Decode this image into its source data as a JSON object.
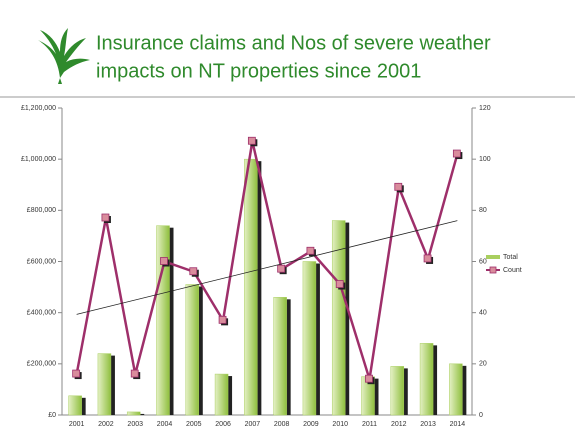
{
  "chart_data": {
    "type": "bar_line",
    "title_lines": [
      "Insurance claims and Nos of severe weather",
      "impacts on NT properties since 2001"
    ],
    "categories": [
      "2001",
      "2002",
      "2003",
      "2004",
      "2005",
      "2006",
      "2007",
      "2008",
      "2009",
      "2010",
      "2011",
      "2012",
      "2013",
      "2014"
    ],
    "series": [
      {
        "name": "Total",
        "type": "bar",
        "color": "#a9cf5f",
        "values": [
          75000,
          240000,
          12000,
          740000,
          510000,
          160000,
          1000000,
          460000,
          600000,
          760000,
          150000,
          190000,
          280000,
          200000
        ]
      },
      {
        "name": "Count",
        "type": "line",
        "axis": "y2",
        "color": "#9e2f6a",
        "marker_color": "#d98c9c",
        "values": [
          16,
          77,
          16,
          60,
          56,
          37,
          107,
          57,
          64,
          51,
          14,
          89,
          61,
          102
        ]
      }
    ],
    "ylim": [
      0,
      1200000
    ],
    "yticks": [
      {
        "value": 0,
        "label": "£0"
      },
      {
        "value": 200000,
        "label": "£200,000"
      },
      {
        "value": 400000,
        "label": "£400,000"
      },
      {
        "value": 600000,
        "label": "£600,000"
      },
      {
        "value": 800000,
        "label": "£800,000"
      },
      {
        "value": 1000000,
        "label": "£1,000,000"
      },
      {
        "value": 1200000,
        "label": "£1,200,000"
      }
    ],
    "y2lim": [
      0,
      120
    ],
    "y2ticks": [
      0,
      20,
      40,
      60,
      80,
      100,
      120
    ],
    "trendline": {
      "series": 1,
      "color": "#222222"
    },
    "grid": false,
    "legend": "right"
  }
}
